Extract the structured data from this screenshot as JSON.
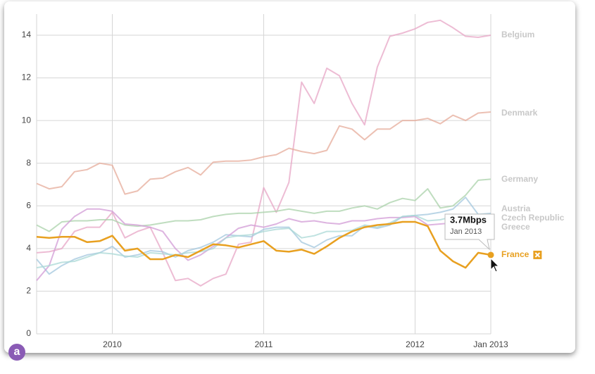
{
  "chart_data": {
    "type": "line",
    "x": [
      0,
      1,
      2,
      3,
      4,
      5,
      6,
      7,
      8,
      9,
      10,
      11,
      12,
      13,
      14,
      15,
      16,
      17,
      18,
      19,
      20,
      21,
      22,
      23,
      24,
      25,
      26,
      27,
      28,
      29,
      30,
      31,
      32,
      33,
      34,
      35,
      36
    ],
    "xlim": [
      0,
      36
    ],
    "xticks": [
      {
        "value": 6,
        "label": "2010"
      },
      {
        "value": 18,
        "label": "2011"
      },
      {
        "value": 30,
        "label": "2012"
      },
      {
        "value": 36,
        "label": "Jan 2013"
      }
    ],
    "ylim": [
      0,
      14
    ],
    "yticks": [
      0,
      2,
      4,
      6,
      8,
      10,
      12,
      14
    ],
    "grid": true,
    "series": [
      {
        "name": "Belgium",
        "color": "#e7a6c6",
        "values": [
          3.8,
          3.85,
          4.0,
          4.8,
          5.0,
          5.0,
          5.7,
          4.5,
          4.8,
          5.0,
          3.8,
          2.5,
          2.6,
          2.25,
          2.6,
          2.8,
          4.2,
          4.3,
          6.85,
          5.7,
          7.1,
          11.8,
          10.8,
          12.45,
          12.1,
          10.8,
          9.8,
          12.5,
          13.95,
          14.1,
          14.3,
          14.6,
          14.7,
          14.35,
          13.95,
          13.9,
          14.0
        ]
      },
      {
        "name": "Denmark",
        "color": "#e6ab9a",
        "values": [
          7.05,
          6.8,
          6.9,
          7.6,
          7.7,
          8.0,
          7.9,
          6.55,
          6.7,
          7.25,
          7.3,
          7.6,
          7.8,
          7.45,
          8.05,
          8.1,
          8.1,
          8.15,
          8.3,
          8.4,
          8.7,
          8.55,
          8.45,
          8.6,
          9.75,
          9.6,
          9.1,
          9.6,
          9.6,
          10.0,
          10.0,
          10.1,
          9.85,
          10.25,
          10.0,
          10.35,
          10.4
        ]
      },
      {
        "name": "Germany",
        "color": "#a9d1a9",
        "values": [
          5.1,
          4.8,
          5.25,
          5.3,
          5.3,
          5.35,
          5.35,
          5.1,
          5.05,
          5.1,
          5.2,
          5.3,
          5.3,
          5.35,
          5.5,
          5.6,
          5.65,
          5.65,
          5.7,
          5.75,
          5.85,
          5.75,
          5.65,
          5.75,
          5.75,
          5.9,
          6.0,
          5.85,
          6.15,
          6.35,
          6.25,
          6.8,
          5.9,
          6.0,
          6.5,
          7.2,
          7.25
        ]
      },
      {
        "name": "Austria",
        "color": "#a3c7de",
        "values": [
          3.5,
          2.8,
          3.2,
          3.5,
          3.7,
          3.8,
          4.1,
          3.6,
          3.7,
          3.9,
          3.85,
          3.6,
          3.9,
          4.05,
          4.3,
          4.65,
          4.6,
          4.55,
          4.9,
          5.0,
          5.0,
          4.3,
          4.05,
          4.4,
          4.6,
          4.6,
          5.05,
          4.95,
          5.1,
          5.5,
          5.55,
          5.6,
          5.7,
          5.85,
          6.4,
          5.6,
          5.65
        ]
      },
      {
        "name": "Czech Republic",
        "color": "#d29bd6",
        "values": [
          2.5,
          3.2,
          4.9,
          5.5,
          5.85,
          5.85,
          5.75,
          5.15,
          5.1,
          5.0,
          4.8,
          4.0,
          3.45,
          3.7,
          4.1,
          4.5,
          4.95,
          5.1,
          5.0,
          5.15,
          5.4,
          5.25,
          5.3,
          5.2,
          5.15,
          5.3,
          5.3,
          5.4,
          5.45,
          5.45,
          5.5,
          5.1,
          5.15,
          5.2,
          5.25,
          5.3,
          5.3
        ]
      },
      {
        "name": "Greece",
        "color": "#aad8d6",
        "values": [
          3.1,
          3.2,
          3.35,
          3.4,
          3.6,
          3.8,
          3.75,
          3.65,
          3.6,
          3.8,
          3.75,
          3.7,
          3.8,
          3.85,
          4.0,
          4.5,
          4.6,
          4.65,
          4.8,
          4.9,
          4.95,
          4.5,
          4.6,
          4.8,
          4.8,
          4.85,
          5.1,
          5.0,
          5.2,
          5.5,
          5.55,
          5.3,
          5.35,
          5.5,
          5.6,
          5.6,
          5.6
        ]
      },
      {
        "name": "France",
        "color": "#e8a020",
        "highlight": true,
        "values": [
          4.55,
          4.5,
          4.55,
          4.55,
          4.3,
          4.35,
          4.6,
          3.9,
          4.0,
          3.5,
          3.5,
          3.7,
          3.6,
          3.9,
          4.2,
          4.15,
          4.05,
          4.2,
          4.35,
          3.9,
          3.85,
          3.95,
          3.75,
          4.1,
          4.5,
          4.8,
          5.0,
          5.1,
          5.15,
          5.25,
          5.25,
          5.05,
          3.9,
          3.4,
          3.1,
          3.8,
          3.7
        ]
      }
    ],
    "tooltip": {
      "value": "3.7Mbps",
      "date": "Jan 2013"
    }
  }
}
